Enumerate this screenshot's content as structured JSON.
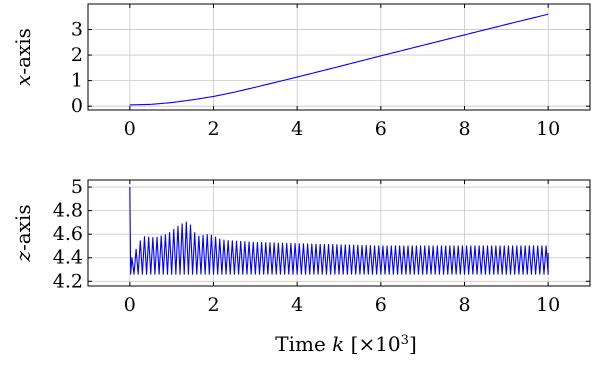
{
  "figure": {
    "xlabel_main": "Time",
    "xlabel_var": "k",
    "xlabel_unit_open": "[×10",
    "xlabel_unit_exp": "3",
    "xlabel_unit_close": "]"
  },
  "chart_data": [
    {
      "type": "line",
      "title": "",
      "ylabel_var": "x",
      "ylabel_text": "-axis",
      "xlim": [
        -1,
        11
      ],
      "ylim": [
        -0.15,
        4.0
      ],
      "xticks": [
        0,
        2,
        4,
        6,
        8,
        10
      ],
      "xtick_labels": [
        "0",
        "2",
        "4",
        "6",
        "8",
        "10"
      ],
      "yticks": [
        0,
        1,
        2,
        3
      ],
      "ytick_labels": [
        "0",
        "1",
        "2",
        "3"
      ],
      "grid": true,
      "series_color": "#0000ff",
      "series": [
        {
          "x": [
            0,
            0.5,
            1.0,
            1.5,
            2.0,
            2.5,
            3.0,
            3.5,
            4.0,
            5.0,
            6.0,
            7.0,
            8.0,
            9.0,
            10.0
          ],
          "y": [
            0.05,
            0.07,
            0.14,
            0.25,
            0.38,
            0.55,
            0.74,
            0.94,
            1.14,
            1.55,
            1.97,
            2.38,
            2.79,
            3.2,
            3.6
          ]
        }
      ]
    },
    {
      "type": "line",
      "title": "",
      "ylabel_var": "z",
      "ylabel_text": "-axis",
      "xlim": [
        -1,
        11
      ],
      "ylim": [
        4.16,
        5.06
      ],
      "xticks": [
        0,
        2,
        4,
        6,
        8,
        10
      ],
      "xtick_labels": [
        "0",
        "2",
        "4",
        "6",
        "8",
        "10"
      ],
      "yticks": [
        4.2,
        4.4,
        4.6,
        4.8,
        5.0
      ],
      "ytick_labels": [
        "4.2",
        "4.4",
        "4.6",
        "4.8",
        "5"
      ],
      "grid": true,
      "series_color": "#0000ff",
      "series": [
        {
          "start": {
            "x": 0,
            "y": 5.0
          },
          "oscillation_period": 0.1,
          "baseline_low": 4.26,
          "envelope_x": [
            0.05,
            0.3,
            0.6,
            0.9,
            1.2,
            1.4,
            1.6,
            1.9,
            2.2,
            3.0,
            6.0,
            10.0
          ],
          "envelope_peak": [
            4.4,
            4.58,
            4.57,
            4.6,
            4.68,
            4.71,
            4.58,
            4.6,
            4.55,
            4.53,
            4.5,
            4.5
          ]
        }
      ]
    }
  ]
}
